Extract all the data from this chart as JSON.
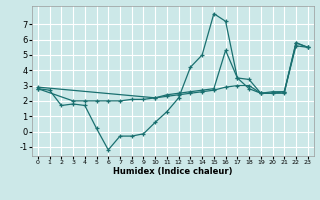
{
  "xlabel": "Humidex (Indice chaleur)",
  "background_color": "#cce8e8",
  "line_color": "#1a7070",
  "grid_color": "#ffffff",
  "xlim": [
    -0.5,
    23.5
  ],
  "ylim": [
    -1.6,
    8.2
  ],
  "xticks": [
    0,
    1,
    2,
    3,
    4,
    5,
    6,
    7,
    8,
    9,
    10,
    11,
    12,
    13,
    14,
    15,
    16,
    17,
    18,
    19,
    20,
    21,
    22,
    23
  ],
  "yticks": [
    -1,
    0,
    1,
    2,
    3,
    4,
    5,
    6,
    7
  ],
  "series": [
    {
      "x": [
        0,
        1,
        2,
        3,
        4,
        5,
        6,
        7,
        8,
        9,
        10,
        11,
        12,
        13,
        14,
        15,
        16,
        17,
        18,
        19,
        20,
        21,
        22,
        23
      ],
      "y": [
        2.8,
        2.7,
        1.7,
        1.8,
        1.7,
        0.2,
        -1.2,
        -0.3,
        -0.3,
        -0.15,
        0.6,
        1.3,
        2.2,
        4.2,
        5.0,
        7.7,
        7.2,
        3.5,
        3.4,
        2.5,
        2.5,
        2.5,
        5.8,
        5.5
      ]
    },
    {
      "x": [
        0,
        3,
        4,
        5,
        6,
        7,
        8,
        9,
        10,
        11,
        12,
        13,
        14,
        15,
        16,
        17,
        18,
        19,
        20,
        21,
        22,
        23
      ],
      "y": [
        2.8,
        2.0,
        2.0,
        2.0,
        2.0,
        2.0,
        2.1,
        2.1,
        2.2,
        2.3,
        2.4,
        2.5,
        2.6,
        2.7,
        2.9,
        3.0,
        3.0,
        2.5,
        2.6,
        2.6,
        5.6,
        5.5
      ]
    },
    {
      "x": [
        0,
        10,
        11,
        12,
        13,
        14,
        15,
        16,
        17,
        18,
        19,
        20,
        21,
        22,
        23
      ],
      "y": [
        2.9,
        2.2,
        2.4,
        2.5,
        2.6,
        2.7,
        2.8,
        5.3,
        3.5,
        2.8,
        2.5,
        2.5,
        2.6,
        5.8,
        5.5
      ]
    }
  ]
}
